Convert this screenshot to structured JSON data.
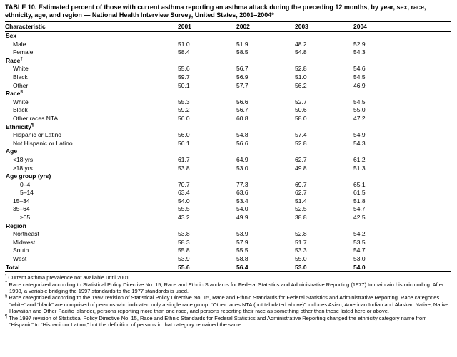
{
  "title": "TABLE 10. Estimated percent of those with current asthma reporting an asthma attack during the preceding 12 months, by year, sex, race, ethnicity, age, and region — National Health Interview Survey, United States, 2001–2004*",
  "table": {
    "columns": [
      "Characteristic",
      "2001",
      "2002",
      "2003",
      "2004"
    ],
    "rows": [
      {
        "label": "Sex",
        "section": true,
        "indent": 0
      },
      {
        "label": "Male",
        "indent": 1,
        "values": [
          "51.0",
          "51.9",
          "48.2",
          "52.9"
        ]
      },
      {
        "label": "Female",
        "indent": 1,
        "values": [
          "58.4",
          "58.5",
          "54.8",
          "54.3"
        ]
      },
      {
        "label": "Race",
        "sup": "†",
        "section": true,
        "indent": 0
      },
      {
        "label": "White",
        "indent": 1,
        "values": [
          "55.6",
          "56.7",
          "52.8",
          "54.6"
        ]
      },
      {
        "label": "Black",
        "indent": 1,
        "values": [
          "59.7",
          "56.9",
          "51.0",
          "54.5"
        ]
      },
      {
        "label": "Other",
        "indent": 1,
        "values": [
          "50.1",
          "57.7",
          "56.2",
          "46.9"
        ]
      },
      {
        "label": "Race",
        "sup": "§",
        "section": true,
        "indent": 0
      },
      {
        "label": "White",
        "indent": 1,
        "values": [
          "55.3",
          "56.6",
          "52.7",
          "54.5"
        ]
      },
      {
        "label": "Black",
        "indent": 1,
        "values": [
          "59.2",
          "56.7",
          "50.6",
          "55.0"
        ]
      },
      {
        "label": "Other races NTA",
        "indent": 1,
        "values": [
          "56.0",
          "60.8",
          "58.0",
          "47.2"
        ]
      },
      {
        "label": "Ethnicity",
        "sup": "¶",
        "section": true,
        "indent": 0
      },
      {
        "label": "Hispanic or Latino",
        "indent": 1,
        "values": [
          "56.0",
          "54.8",
          "57.4",
          "54.9"
        ]
      },
      {
        "label": "Not Hispanic or Latino",
        "indent": 1,
        "values": [
          "56.1",
          "56.6",
          "52.8",
          "54.3"
        ]
      },
      {
        "label": "Age",
        "section": true,
        "indent": 0
      },
      {
        "label": "<18 yrs",
        "indent": 1,
        "values": [
          "61.7",
          "64.9",
          "62.7",
          "61.2"
        ]
      },
      {
        "label": "≥18 yrs",
        "indent": 1,
        "values": [
          "53.8",
          "53.0",
          "49.8",
          "51.3"
        ]
      },
      {
        "label": "Age group (yrs)",
        "section": true,
        "indent": 0
      },
      {
        "label": "0–4",
        "indent": 2,
        "values": [
          "70.7",
          "77.3",
          "69.7",
          "65.1"
        ]
      },
      {
        "label": "5–14",
        "indent": 2,
        "values": [
          "63.4",
          "63.6",
          "62.7",
          "61.5"
        ]
      },
      {
        "label": "15–34",
        "indent": 1,
        "values": [
          "54.0",
          "53.4",
          "51.4",
          "51.8"
        ]
      },
      {
        "label": "35–64",
        "indent": 1,
        "values": [
          "55.5",
          "54.0",
          "52.5",
          "54.7"
        ]
      },
      {
        "label": "≥65",
        "indent": 2,
        "values": [
          "43.2",
          "49.9",
          "38.8",
          "42.5"
        ]
      },
      {
        "label": "Region",
        "section": true,
        "indent": 0
      },
      {
        "label": "Northeast",
        "indent": 1,
        "values": [
          "53.8",
          "53.9",
          "52.8",
          "54.2"
        ]
      },
      {
        "label": "Midwest",
        "indent": 1,
        "values": [
          "58.3",
          "57.9",
          "51.7",
          "53.5"
        ]
      },
      {
        "label": "South",
        "indent": 1,
        "values": [
          "55.8",
          "55.5",
          "53.3",
          "54.7"
        ]
      },
      {
        "label": "West",
        "indent": 1,
        "values": [
          "53.9",
          "58.8",
          "55.0",
          "53.0"
        ]
      },
      {
        "label": "Total",
        "section": true,
        "bold_values": true,
        "indent": 0,
        "values": [
          "55.6",
          "56.4",
          "53.0",
          "54.0"
        ]
      }
    ]
  },
  "footnotes": [
    {
      "marker": "*",
      "text": "Current asthma prevalence not available until 2001."
    },
    {
      "marker": "†",
      "text": "Race categorized according to Statistical Policy Directive No. 15, Race and Ethnic Standards for Federal Statistics and Administrative Reporting (1977) to maintain historic coding. After 1998, a variable bridging the 1997 standards to the 1977 standards is used."
    },
    {
      "marker": "§",
      "text": "Race categorized according to the 1997 revision of Statistical Policy Directive No. 15, Race and Ethnic Standards for Federal Statistics and Administrative Reporting. Race categories “white” and “black” are comprised of persons who indicated only a single race group. “Other races NTA (not tabulated above)” includes Asian, American Indian and Alaskan Native, Native Hawaiian and Other Pacific Islander, persons reporting more than one race, and persons reporting their race as something other than those listed here or above."
    },
    {
      "marker": "¶",
      "text": "The 1997 revision of Statistical Policy Directive No. 15, Race and Ethnic Standards for Federal Statistics and Administrative Reporting changed the ethnicity category name from “Hispanic” to “Hispanic or Latino,” but the definition of persons in that category remained the same."
    }
  ]
}
